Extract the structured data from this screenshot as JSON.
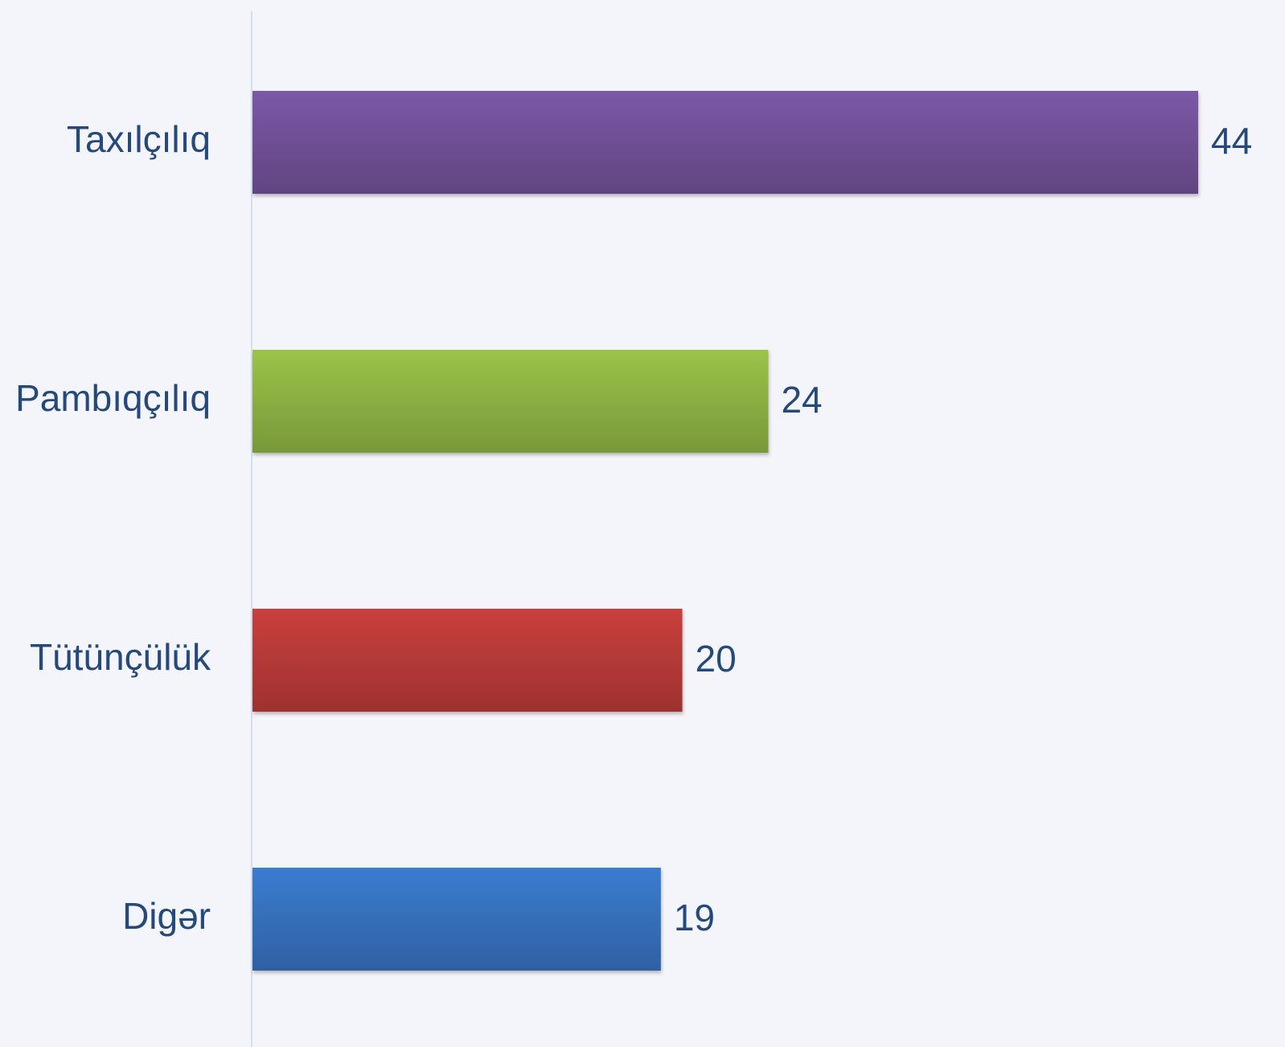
{
  "chart_data": {
    "type": "bar",
    "orientation": "horizontal",
    "categories": [
      "Taxılçılıq",
      "Pambıqçılıq",
      "Tütünçülük",
      "Digər"
    ],
    "values": [
      44,
      24,
      20,
      19
    ],
    "colors": [
      "#7b58a6",
      "#9bc348",
      "#c9403c",
      "#3b7bd0"
    ]
  }
}
